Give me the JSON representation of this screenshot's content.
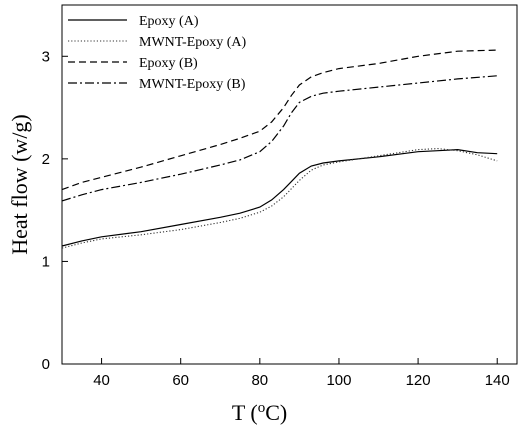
{
  "chart_data": {
    "type": "line",
    "title": "",
    "xlabel": "T (oC)",
    "xlabel_parts": {
      "prefix": "T (",
      "sup": "o",
      "suffix": "C)"
    },
    "ylabel": "Heat flow (w/g)",
    "xlim": [
      30,
      145
    ],
    "ylim": [
      0,
      3.5
    ],
    "xticks": [
      40,
      60,
      80,
      100,
      120,
      140
    ],
    "yticks": [
      0,
      1,
      2,
      3
    ],
    "grid": false,
    "legend_position": "top-left",
    "series": [
      {
        "name": "Epoxy (A)",
        "style": "solid",
        "x": [
          30,
          35,
          40,
          50,
          60,
          70,
          75,
          80,
          83,
          86,
          88,
          90,
          93,
          96,
          100,
          110,
          120,
          125,
          130,
          135,
          140
        ],
        "y": [
          1.15,
          1.2,
          1.24,
          1.29,
          1.36,
          1.43,
          1.47,
          1.53,
          1.6,
          1.7,
          1.78,
          1.86,
          1.93,
          1.96,
          1.98,
          2.02,
          2.07,
          2.08,
          2.09,
          2.06,
          2.05
        ]
      },
      {
        "name": "MWNT-Epoxy (A)",
        "style": "dotted",
        "x": [
          30,
          35,
          40,
          50,
          60,
          70,
          75,
          80,
          83,
          86,
          88,
          90,
          93,
          96,
          100,
          110,
          120,
          125,
          130,
          135,
          140
        ],
        "y": [
          1.13,
          1.18,
          1.22,
          1.26,
          1.31,
          1.38,
          1.42,
          1.48,
          1.54,
          1.63,
          1.71,
          1.79,
          1.89,
          1.94,
          1.97,
          2.03,
          2.09,
          2.1,
          2.08,
          2.04,
          1.98
        ]
      },
      {
        "name": "Epoxy (B)",
        "style": "dashed",
        "x": [
          30,
          35,
          40,
          50,
          60,
          70,
          75,
          80,
          83,
          86,
          88,
          90,
          93,
          96,
          100,
          110,
          120,
          130,
          140
        ],
        "y": [
          1.7,
          1.77,
          1.82,
          1.92,
          2.03,
          2.14,
          2.2,
          2.27,
          2.36,
          2.5,
          2.62,
          2.72,
          2.8,
          2.84,
          2.88,
          2.93,
          3.0,
          3.05,
          3.06
        ]
      },
      {
        "name": "MWNT-Epoxy (B)",
        "style": "dashdot",
        "x": [
          30,
          35,
          40,
          50,
          60,
          70,
          75,
          80,
          83,
          86,
          88,
          90,
          93,
          96,
          100,
          110,
          120,
          130,
          140
        ],
        "y": [
          1.59,
          1.65,
          1.7,
          1.77,
          1.85,
          1.94,
          1.99,
          2.07,
          2.17,
          2.32,
          2.45,
          2.55,
          2.61,
          2.64,
          2.66,
          2.7,
          2.74,
          2.78,
          2.81
        ]
      }
    ]
  }
}
